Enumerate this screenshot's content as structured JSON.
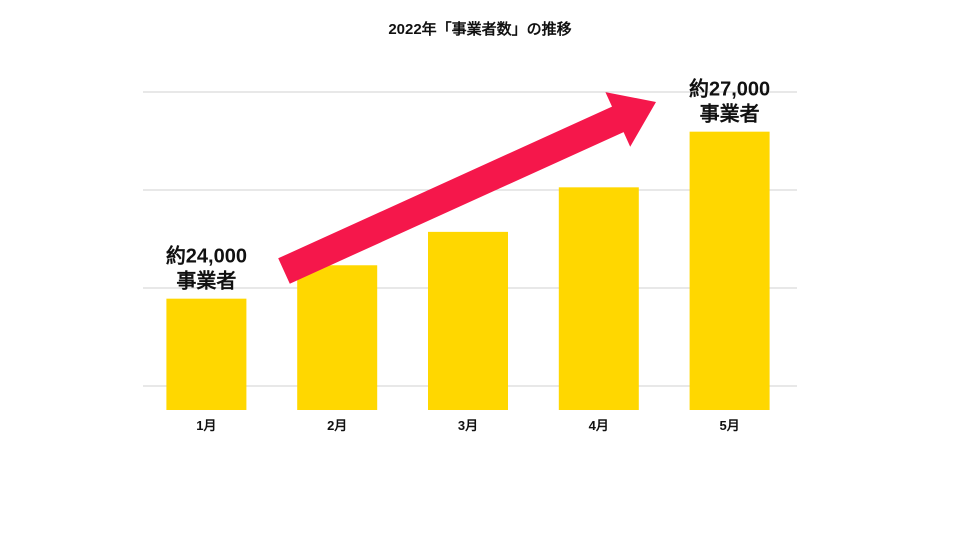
{
  "chart_data": {
    "type": "bar",
    "title": "2022年「事業者数」の推移",
    "xlabel": "",
    "ylabel": "",
    "categories": [
      "1月",
      "2月",
      "3月",
      "4月",
      "5月"
    ],
    "values": [
      24000,
      24600,
      25200,
      26000,
      27000
    ],
    "ylim": [
      22000,
      28000
    ],
    "grid": true,
    "legend": "none",
    "bar_color": "#FFD700",
    "arrow_color": "#F5174B",
    "annotations": [
      {
        "category": "1月",
        "line1": "約24,000",
        "line2": "事業者"
      },
      {
        "category": "5月",
        "line1": "約27,000",
        "line2": "事業者"
      }
    ]
  }
}
